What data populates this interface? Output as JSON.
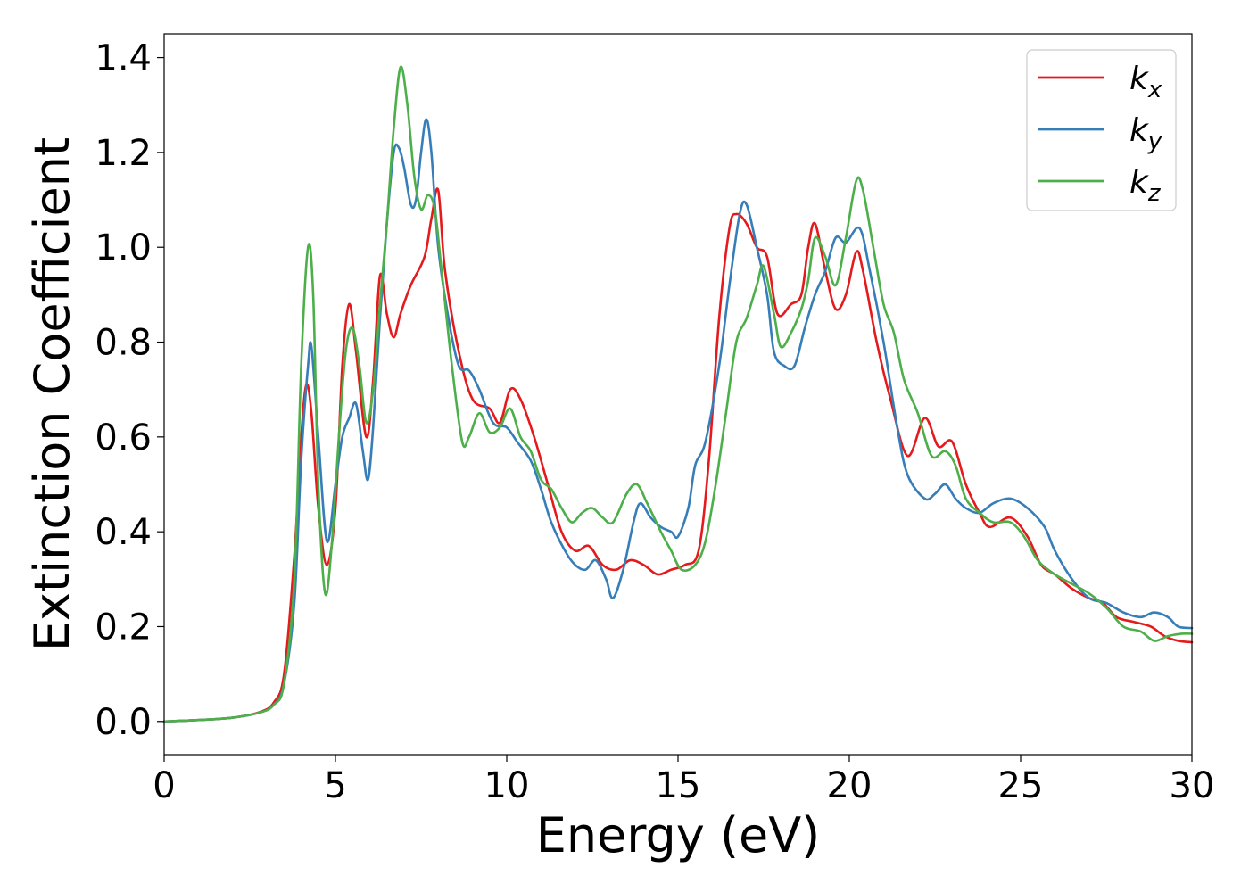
{
  "chart_data": {
    "type": "line",
    "title": "",
    "xlabel": "Energy (eV)",
    "ylabel": "Extinction Coefficient",
    "xlim": [
      0,
      30
    ],
    "ylim": [
      -0.07,
      1.45
    ],
    "xticks": [
      0,
      5,
      10,
      15,
      20,
      25,
      30
    ],
    "xtick_labels": [
      "0",
      "5",
      "10",
      "15",
      "20",
      "25",
      "30"
    ],
    "yticks": [
      0.0,
      0.2,
      0.4,
      0.6,
      0.8,
      1.0,
      1.2,
      1.4
    ],
    "ytick_labels": [
      "0.0",
      "0.2",
      "0.4",
      "0.6",
      "0.8",
      "1.0",
      "1.2",
      "1.4"
    ],
    "grid": false,
    "legend_position": "top-right",
    "series": [
      {
        "name": "k_x",
        "label_main": "k",
        "label_sub": "x",
        "color": "#e41a1c",
        "points": [
          [
            0,
            0
          ],
          [
            1,
            0.003
          ],
          [
            2,
            0.008
          ],
          [
            2.8,
            0.02
          ],
          [
            3.2,
            0.04
          ],
          [
            3.5,
            0.1
          ],
          [
            3.8,
            0.35
          ],
          [
            4.0,
            0.6
          ],
          [
            4.15,
            0.71
          ],
          [
            4.3,
            0.65
          ],
          [
            4.5,
            0.45
          ],
          [
            4.75,
            0.33
          ],
          [
            5.0,
            0.45
          ],
          [
            5.2,
            0.75
          ],
          [
            5.4,
            0.88
          ],
          [
            5.6,
            0.78
          ],
          [
            5.9,
            0.6
          ],
          [
            6.1,
            0.72
          ],
          [
            6.3,
            0.94
          ],
          [
            6.5,
            0.86
          ],
          [
            6.7,
            0.81
          ],
          [
            6.9,
            0.86
          ],
          [
            7.2,
            0.92
          ],
          [
            7.6,
            0.98
          ],
          [
            7.8,
            1.06
          ],
          [
            8.0,
            1.12
          ],
          [
            8.2,
            0.95
          ],
          [
            8.6,
            0.78
          ],
          [
            9.0,
            0.68
          ],
          [
            9.5,
            0.66
          ],
          [
            9.8,
            0.63
          ],
          [
            10.1,
            0.7
          ],
          [
            10.4,
            0.68
          ],
          [
            10.8,
            0.6
          ],
          [
            11.2,
            0.5
          ],
          [
            11.6,
            0.4
          ],
          [
            12.0,
            0.36
          ],
          [
            12.4,
            0.37
          ],
          [
            12.8,
            0.33
          ],
          [
            13.2,
            0.32
          ],
          [
            13.6,
            0.34
          ],
          [
            14.0,
            0.33
          ],
          [
            14.4,
            0.31
          ],
          [
            14.8,
            0.32
          ],
          [
            15.2,
            0.33
          ],
          [
            15.6,
            0.36
          ],
          [
            15.9,
            0.55
          ],
          [
            16.2,
            0.85
          ],
          [
            16.5,
            1.04
          ],
          [
            16.7,
            1.07
          ],
          [
            17.0,
            1.05
          ],
          [
            17.3,
            1.0
          ],
          [
            17.6,
            0.98
          ],
          [
            17.9,
            0.86
          ],
          [
            18.3,
            0.88
          ],
          [
            18.6,
            0.9
          ],
          [
            18.8,
            1.0
          ],
          [
            19.0,
            1.05
          ],
          [
            19.3,
            0.95
          ],
          [
            19.6,
            0.87
          ],
          [
            19.9,
            0.9
          ],
          [
            20.2,
            0.99
          ],
          [
            20.4,
            0.95
          ],
          [
            20.8,
            0.8
          ],
          [
            21.2,
            0.68
          ],
          [
            21.7,
            0.56
          ],
          [
            22.2,
            0.64
          ],
          [
            22.6,
            0.58
          ],
          [
            23.0,
            0.59
          ],
          [
            23.4,
            0.5
          ],
          [
            23.8,
            0.44
          ],
          [
            24.1,
            0.41
          ],
          [
            24.7,
            0.43
          ],
          [
            25.2,
            0.39
          ],
          [
            25.6,
            0.33
          ],
          [
            26.0,
            0.31
          ],
          [
            26.5,
            0.28
          ],
          [
            27.0,
            0.26
          ],
          [
            27.4,
            0.25
          ],
          [
            27.8,
            0.22
          ],
          [
            28.3,
            0.21
          ],
          [
            28.8,
            0.2
          ],
          [
            29.2,
            0.18
          ],
          [
            29.6,
            0.17
          ],
          [
            30,
            0.167
          ]
        ]
      },
      {
        "name": "k_y",
        "label_main": "k",
        "label_sub": "y",
        "color": "#377eb8",
        "points": [
          [
            0,
            0
          ],
          [
            1,
            0.003
          ],
          [
            2,
            0.008
          ],
          [
            2.8,
            0.019
          ],
          [
            3.2,
            0.035
          ],
          [
            3.5,
            0.08
          ],
          [
            3.8,
            0.25
          ],
          [
            4.0,
            0.55
          ],
          [
            4.2,
            0.75
          ],
          [
            4.3,
            0.79
          ],
          [
            4.5,
            0.6
          ],
          [
            4.75,
            0.38
          ],
          [
            5.0,
            0.5
          ],
          [
            5.2,
            0.6
          ],
          [
            5.4,
            0.64
          ],
          [
            5.6,
            0.67
          ],
          [
            5.8,
            0.57
          ],
          [
            5.95,
            0.51
          ],
          [
            6.1,
            0.62
          ],
          [
            6.3,
            0.85
          ],
          [
            6.5,
            1.05
          ],
          [
            6.7,
            1.2
          ],
          [
            6.85,
            1.21
          ],
          [
            7.0,
            1.17
          ],
          [
            7.2,
            1.09
          ],
          [
            7.35,
            1.1
          ],
          [
            7.5,
            1.2
          ],
          [
            7.65,
            1.27
          ],
          [
            7.8,
            1.2
          ],
          [
            8.0,
            1.0
          ],
          [
            8.3,
            0.85
          ],
          [
            8.6,
            0.75
          ],
          [
            8.9,
            0.74
          ],
          [
            9.2,
            0.7
          ],
          [
            9.6,
            0.63
          ],
          [
            10.0,
            0.62
          ],
          [
            10.3,
            0.59
          ],
          [
            10.7,
            0.55
          ],
          [
            11.0,
            0.49
          ],
          [
            11.3,
            0.42
          ],
          [
            11.7,
            0.36
          ],
          [
            12.0,
            0.33
          ],
          [
            12.3,
            0.32
          ],
          [
            12.6,
            0.34
          ],
          [
            12.9,
            0.3
          ],
          [
            13.1,
            0.26
          ],
          [
            13.4,
            0.32
          ],
          [
            13.7,
            0.42
          ],
          [
            13.9,
            0.46
          ],
          [
            14.2,
            0.43
          ],
          [
            14.5,
            0.41
          ],
          [
            14.8,
            0.4
          ],
          [
            15.0,
            0.39
          ],
          [
            15.3,
            0.45
          ],
          [
            15.5,
            0.54
          ],
          [
            15.8,
            0.59
          ],
          [
            16.2,
            0.75
          ],
          [
            16.5,
            0.92
          ],
          [
            16.8,
            1.07
          ],
          [
            17.0,
            1.09
          ],
          [
            17.3,
            1.0
          ],
          [
            17.6,
            0.9
          ],
          [
            17.8,
            0.78
          ],
          [
            18.1,
            0.75
          ],
          [
            18.4,
            0.75
          ],
          [
            18.7,
            0.83
          ],
          [
            19.0,
            0.9
          ],
          [
            19.3,
            0.95
          ],
          [
            19.6,
            1.02
          ],
          [
            19.9,
            1.01
          ],
          [
            20.3,
            1.04
          ],
          [
            20.6,
            0.95
          ],
          [
            21.0,
            0.8
          ],
          [
            21.4,
            0.62
          ],
          [
            21.7,
            0.52
          ],
          [
            22.2,
            0.47
          ],
          [
            22.5,
            0.48
          ],
          [
            22.8,
            0.5
          ],
          [
            23.1,
            0.47
          ],
          [
            23.4,
            0.45
          ],
          [
            23.8,
            0.44
          ],
          [
            24.2,
            0.46
          ],
          [
            24.7,
            0.47
          ],
          [
            25.2,
            0.45
          ],
          [
            25.7,
            0.41
          ],
          [
            26.0,
            0.36
          ],
          [
            26.5,
            0.3
          ],
          [
            27.0,
            0.26
          ],
          [
            27.5,
            0.25
          ],
          [
            28.0,
            0.23
          ],
          [
            28.5,
            0.22
          ],
          [
            28.9,
            0.23
          ],
          [
            29.3,
            0.22
          ],
          [
            29.6,
            0.2
          ],
          [
            30,
            0.197
          ]
        ]
      },
      {
        "name": "k_z",
        "label_main": "k",
        "label_sub": "z",
        "color": "#4daf4a",
        "points": [
          [
            0,
            0
          ],
          [
            1,
            0.003
          ],
          [
            2,
            0.008
          ],
          [
            2.8,
            0.019
          ],
          [
            3.2,
            0.035
          ],
          [
            3.5,
            0.08
          ],
          [
            3.8,
            0.3
          ],
          [
            4.0,
            0.75
          ],
          [
            4.2,
            1.0
          ],
          [
            4.35,
            0.9
          ],
          [
            4.5,
            0.5
          ],
          [
            4.7,
            0.27
          ],
          [
            4.9,
            0.38
          ],
          [
            5.1,
            0.6
          ],
          [
            5.3,
            0.78
          ],
          [
            5.5,
            0.83
          ],
          [
            5.7,
            0.75
          ],
          [
            5.9,
            0.63
          ],
          [
            6.1,
            0.7
          ],
          [
            6.3,
            0.88
          ],
          [
            6.5,
            1.05
          ],
          [
            6.7,
            1.25
          ],
          [
            6.9,
            1.38
          ],
          [
            7.1,
            1.3
          ],
          [
            7.3,
            1.15
          ],
          [
            7.5,
            1.08
          ],
          [
            7.7,
            1.11
          ],
          [
            7.9,
            1.08
          ],
          [
            8.1,
            0.95
          ],
          [
            8.4,
            0.75
          ],
          [
            8.7,
            0.59
          ],
          [
            8.9,
            0.6
          ],
          [
            9.2,
            0.65
          ],
          [
            9.5,
            0.61
          ],
          [
            9.8,
            0.62
          ],
          [
            10.1,
            0.66
          ],
          [
            10.4,
            0.6
          ],
          [
            10.7,
            0.57
          ],
          [
            11.0,
            0.51
          ],
          [
            11.3,
            0.49
          ],
          [
            11.6,
            0.45
          ],
          [
            11.9,
            0.42
          ],
          [
            12.2,
            0.44
          ],
          [
            12.5,
            0.45
          ],
          [
            12.8,
            0.43
          ],
          [
            13.1,
            0.42
          ],
          [
            13.5,
            0.48
          ],
          [
            13.8,
            0.5
          ],
          [
            14.1,
            0.46
          ],
          [
            14.5,
            0.4
          ],
          [
            14.8,
            0.36
          ],
          [
            15.1,
            0.32
          ],
          [
            15.5,
            0.33
          ],
          [
            15.8,
            0.38
          ],
          [
            16.1,
            0.5
          ],
          [
            16.4,
            0.65
          ],
          [
            16.7,
            0.8
          ],
          [
            17.0,
            0.85
          ],
          [
            17.3,
            0.92
          ],
          [
            17.5,
            0.96
          ],
          [
            17.8,
            0.86
          ],
          [
            18.0,
            0.79
          ],
          [
            18.3,
            0.82
          ],
          [
            18.6,
            0.87
          ],
          [
            18.8,
            0.93
          ],
          [
            19.0,
            1.02
          ],
          [
            19.3,
            0.98
          ],
          [
            19.6,
            0.92
          ],
          [
            19.9,
            1.02
          ],
          [
            20.2,
            1.14
          ],
          [
            20.4,
            1.12
          ],
          [
            20.7,
            1.0
          ],
          [
            21.0,
            0.88
          ],
          [
            21.3,
            0.82
          ],
          [
            21.6,
            0.72
          ],
          [
            22.0,
            0.65
          ],
          [
            22.4,
            0.56
          ],
          [
            22.8,
            0.57
          ],
          [
            23.1,
            0.54
          ],
          [
            23.4,
            0.47
          ],
          [
            23.8,
            0.44
          ],
          [
            24.2,
            0.42
          ],
          [
            24.7,
            0.42
          ],
          [
            25.1,
            0.39
          ],
          [
            25.5,
            0.34
          ],
          [
            26.0,
            0.31
          ],
          [
            26.5,
            0.29
          ],
          [
            27.0,
            0.27
          ],
          [
            27.5,
            0.24
          ],
          [
            28.0,
            0.2
          ],
          [
            28.5,
            0.19
          ],
          [
            28.9,
            0.17
          ],
          [
            29.3,
            0.18
          ],
          [
            29.7,
            0.185
          ],
          [
            30,
            0.185
          ]
        ]
      }
    ]
  }
}
